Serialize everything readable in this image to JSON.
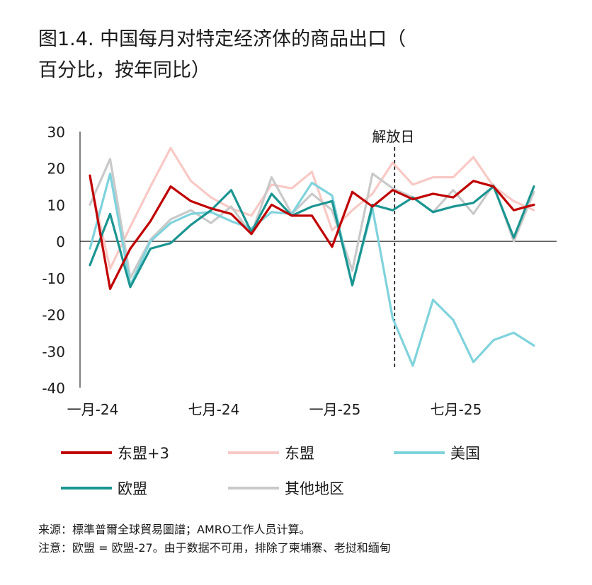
{
  "title_line1": "图1.4. 中国每月对特定经济体的商品出口（",
  "title_line2": "百分比，按年同比）",
  "source": "来源：標準普爾全球貿易圖譜；AMRO工作人员计算。",
  "note": "注意：欧盟 = 欧盟-27。由于数据不可用，排除了柬埔寨、老挝和缅甸",
  "chart_data": {
    "type": "line",
    "title": "图1.4. 中国每月对特定经济体的商品出口（百分比，按年同比）",
    "ylim": [
      -40,
      30
    ],
    "y_ticks": [
      30,
      20,
      10,
      0,
      -10,
      -20,
      -30,
      -40
    ],
    "y_tick_labels": [
      "30",
      "20",
      "10",
      "0",
      "-10",
      "-20",
      "-30",
      "-40"
    ],
    "x_start": "2024-01",
    "x_tick_labels": [
      {
        "index": 0,
        "label": "一月-24"
      },
      {
        "index": 6,
        "label": "七月-24"
      },
      {
        "index": 12,
        "label": "一月-25"
      },
      {
        "index": 18,
        "label": "七月-25"
      }
    ],
    "annotation": {
      "label": "解放日",
      "x_index": 15.1
    },
    "grid": false,
    "legend_position": "bottom",
    "series": [
      {
        "name": "东盟+3",
        "color": "#c00000",
        "values": [
          18,
          -13,
          -2,
          5.5,
          15,
          11,
          9,
          7.5,
          2,
          10,
          7,
          7,
          -1.5,
          13.5,
          9.5,
          14,
          11.5,
          13,
          12,
          16.5,
          15,
          8.5,
          10
        ]
      },
      {
        "name": "东盟",
        "color": "#f8c9c5",
        "values": [
          17,
          -7.5,
          4,
          15,
          25.5,
          16.5,
          12,
          9,
          7,
          15.5,
          14.5,
          19,
          3,
          8.5,
          13,
          21.5,
          15.5,
          17.5,
          17.5,
          23,
          15,
          11,
          8.5
        ]
      },
      {
        "name": "美国",
        "color": "#7fd3dc",
        "values": [
          -2,
          18.5,
          -12,
          0,
          5,
          7.5,
          8,
          5.5,
          3.5,
          8,
          7.5,
          16,
          12.5,
          -12,
          9,
          -21,
          -34,
          -16,
          -21.5,
          -33,
          -27,
          -25,
          -28.5
        ]
      },
      {
        "name": "欧盟",
        "color": "#1b9591",
        "values": [
          -6.5,
          7.5,
          -12.5,
          -2,
          -0.5,
          4.5,
          8.5,
          14,
          2.5,
          13,
          7,
          9.5,
          11,
          -12,
          10,
          8.5,
          12,
          8,
          9.5,
          10.5,
          15,
          1,
          15
        ]
      },
      {
        "name": "其他地区",
        "color": "#c9c9c9",
        "values": [
          10,
          22.5,
          -10,
          0.5,
          6,
          8.5,
          5,
          9.5,
          2,
          17.5,
          7.5,
          13,
          8.5,
          -8,
          18.5,
          14.5,
          12,
          8,
          14,
          7.5,
          15.5,
          0,
          13.5
        ]
      }
    ]
  }
}
